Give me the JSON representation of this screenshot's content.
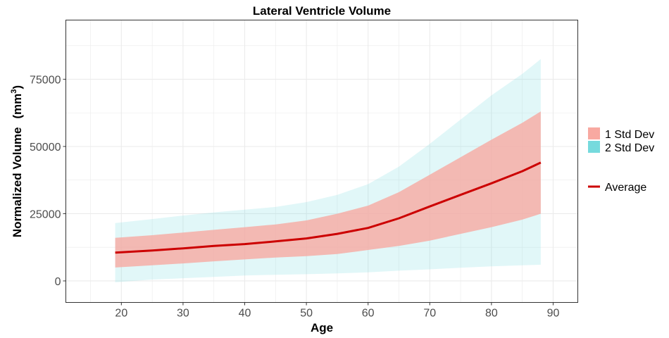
{
  "chart_data": {
    "type": "area",
    "title": "Lateral Ventricle Volume",
    "xlabel": "Age",
    "ylabel": "Normalized Volume",
    "ylabel_unit_base": "(mm",
    "ylabel_unit_exp": "3",
    "ylabel_unit_close": ")",
    "xlim": [
      11,
      94
    ],
    "ylim": [
      -8000,
      97000
    ],
    "xticks": [
      20,
      30,
      40,
      50,
      60,
      70,
      80,
      90
    ],
    "yticks": [
      0,
      25000,
      50000,
      75000
    ],
    "grid": true,
    "legend_position": "right",
    "x": [
      19,
      25,
      30,
      35,
      40,
      45,
      50,
      55,
      60,
      65,
      70,
      75,
      80,
      85,
      88
    ],
    "series": [
      {
        "name": "2 Std Dev",
        "role": "band",
        "color": "#76dadd",
        "opacity": 0.22,
        "lower": [
          -500,
          500,
          1000,
          1500,
          2000,
          2300,
          2500,
          2800,
          3200,
          3800,
          4300,
          4900,
          5400,
          5800,
          6000
        ],
        "upper": [
          21500,
          23000,
          24300,
          25500,
          26500,
          27500,
          29300,
          32000,
          36000,
          42500,
          51000,
          60000,
          69000,
          77000,
          82500
        ]
      },
      {
        "name": "1 Std Dev",
        "role": "band",
        "color": "#f8a9a1",
        "opacity": 0.8,
        "lower": [
          5000,
          5800,
          6500,
          7300,
          8000,
          8700,
          9200,
          10000,
          11500,
          13000,
          15000,
          17500,
          20000,
          22800,
          25000
        ],
        "upper": [
          16000,
          17000,
          18000,
          19000,
          20000,
          21000,
          22500,
          25000,
          28000,
          33000,
          39500,
          46000,
          52500,
          58800,
          63000
        ]
      },
      {
        "name": "Average",
        "role": "line",
        "color": "#cc0000",
        "values": [
          10500,
          11300,
          12100,
          13000,
          13700,
          14700,
          15800,
          17500,
          19700,
          23300,
          27700,
          32000,
          36300,
          40800,
          44000
        ]
      }
    ],
    "legend": [
      {
        "label": "1 Std Dev",
        "kind": "fill",
        "color": "#f8a9a1"
      },
      {
        "label": "2 Std Dev",
        "kind": "fill",
        "color": "#76dadd"
      },
      {
        "label": "Average",
        "kind": "line",
        "color": "#cc0000"
      }
    ]
  }
}
